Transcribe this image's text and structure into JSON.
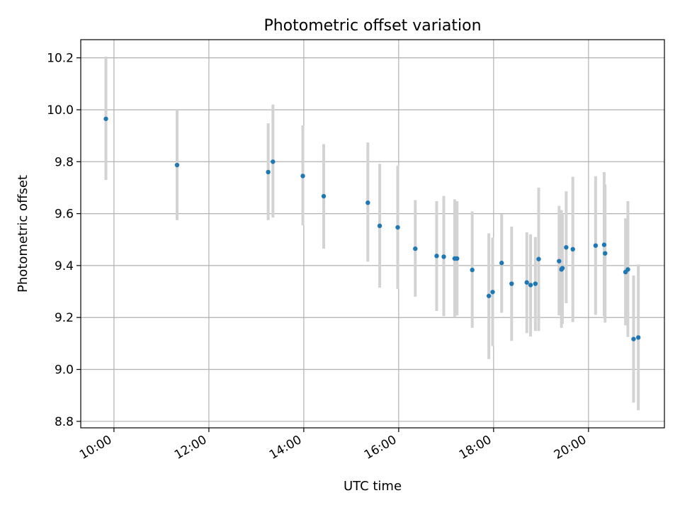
{
  "chart_data": {
    "type": "scatter",
    "title": "Photometric offset variation",
    "xlabel": "UTC time",
    "ylabel": "Photometric offset",
    "x_unit": "hours UTC",
    "xlim": [
      9.3,
      21.6
    ],
    "ylim": [
      8.775,
      10.27
    ],
    "x_ticks": [
      10,
      12,
      14,
      16,
      18,
      20
    ],
    "x_tick_labels": [
      "10:00",
      "12:00",
      "14:00",
      "16:00",
      "18:00",
      "20:00"
    ],
    "y_ticks": [
      8.8,
      9.0,
      9.2,
      9.4,
      9.6,
      9.8,
      10.0,
      10.2
    ],
    "y_tick_labels": [
      "8.8",
      "9.0",
      "9.2",
      "9.4",
      "9.6",
      "9.8",
      "10.0",
      "10.2"
    ],
    "grid": true,
    "marker_color": "#1f77b4",
    "errorbar_color": "#d3d3d3",
    "points": [
      {
        "x": 9.83,
        "y": 9.965,
        "err_low": 9.73,
        "err_high": 10.205
      },
      {
        "x": 11.33,
        "y": 9.787,
        "err_low": 9.575,
        "err_high": 10.0
      },
      {
        "x": 13.25,
        "y": 9.76,
        "err_low": 9.575,
        "err_high": 9.948
      },
      {
        "x": 13.35,
        "y": 9.8,
        "err_low": 9.585,
        "err_high": 10.02
      },
      {
        "x": 13.98,
        "y": 9.745,
        "err_low": 9.555,
        "err_high": 9.94
      },
      {
        "x": 14.42,
        "y": 9.667,
        "err_low": 9.465,
        "err_high": 9.868
      },
      {
        "x": 15.35,
        "y": 9.642,
        "err_low": 9.415,
        "err_high": 9.874
      },
      {
        "x": 15.6,
        "y": 9.553,
        "err_low": 9.315,
        "err_high": 9.792
      },
      {
        "x": 15.98,
        "y": 9.547,
        "err_low": 9.31,
        "err_high": 9.785
      },
      {
        "x": 16.35,
        "y": 9.465,
        "err_low": 9.28,
        "err_high": 9.652
      },
      {
        "x": 16.8,
        "y": 9.437,
        "err_low": 9.225,
        "err_high": 9.648
      },
      {
        "x": 16.95,
        "y": 9.434,
        "err_low": 9.205,
        "err_high": 9.668
      },
      {
        "x": 17.18,
        "y": 9.427,
        "err_low": 9.2,
        "err_high": 9.655
      },
      {
        "x": 17.23,
        "y": 9.427,
        "err_low": 9.208,
        "err_high": 9.648
      },
      {
        "x": 17.55,
        "y": 9.383,
        "err_low": 9.16,
        "err_high": 9.608
      },
      {
        "x": 17.9,
        "y": 9.283,
        "err_low": 9.04,
        "err_high": 9.524
      },
      {
        "x": 17.98,
        "y": 9.298,
        "err_low": 9.09,
        "err_high": 9.508
      },
      {
        "x": 18.17,
        "y": 9.41,
        "err_low": 9.218,
        "err_high": 9.598
      },
      {
        "x": 18.38,
        "y": 9.33,
        "err_low": 9.11,
        "err_high": 9.55
      },
      {
        "x": 18.7,
        "y": 9.335,
        "err_low": 9.14,
        "err_high": 9.528
      },
      {
        "x": 18.78,
        "y": 9.325,
        "err_low": 9.127,
        "err_high": 9.52
      },
      {
        "x": 18.88,
        "y": 9.33,
        "err_low": 9.148,
        "err_high": 9.51
      },
      {
        "x": 18.95,
        "y": 9.425,
        "err_low": 9.148,
        "err_high": 9.7
      },
      {
        "x": 19.38,
        "y": 9.417,
        "err_low": 9.208,
        "err_high": 9.63
      },
      {
        "x": 19.43,
        "y": 9.385,
        "err_low": 9.16,
        "err_high": 9.614
      },
      {
        "x": 19.45,
        "y": 9.39,
        "err_low": 9.175,
        "err_high": 9.6
      },
      {
        "x": 19.53,
        "y": 9.47,
        "err_low": 9.255,
        "err_high": 9.686
      },
      {
        "x": 19.67,
        "y": 9.463,
        "err_low": 9.182,
        "err_high": 9.742
      },
      {
        "x": 20.15,
        "y": 9.477,
        "err_low": 9.21,
        "err_high": 9.744
      },
      {
        "x": 20.33,
        "y": 9.48,
        "err_low": 9.205,
        "err_high": 9.76
      },
      {
        "x": 20.35,
        "y": 9.447,
        "err_low": 9.18,
        "err_high": 9.712
      },
      {
        "x": 20.78,
        "y": 9.375,
        "err_low": 9.17,
        "err_high": 9.582
      },
      {
        "x": 20.83,
        "y": 9.385,
        "err_low": 9.125,
        "err_high": 9.648
      },
      {
        "x": 20.95,
        "y": 9.117,
        "err_low": 8.872,
        "err_high": 9.362
      },
      {
        "x": 21.05,
        "y": 9.123,
        "err_low": 8.843,
        "err_high": 9.404
      }
    ]
  }
}
